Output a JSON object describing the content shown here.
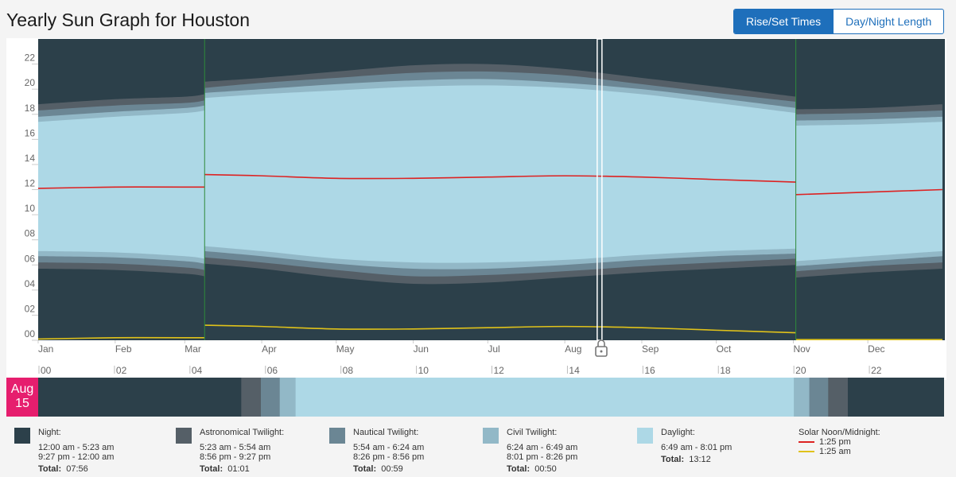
{
  "page": {
    "title": "Yearly Sun Graph for Houston"
  },
  "toggle": {
    "rise_set": "Rise/Set Times",
    "day_night": "Day/Night Length"
  },
  "colors": {
    "night": "#2c404a",
    "astronomical": "#555f67",
    "nautical": "#6b8694",
    "civil": "#92b8c7",
    "daylight": "#add8e6",
    "noon": "#dd2222",
    "midnight": "#e0c21a",
    "accent": "#1e6fbb",
    "badge": "#e61e6e"
  },
  "chart_data": {
    "type": "area",
    "title": "Yearly Sun Graph for Houston",
    "ylim": [
      0,
      24
    ],
    "y_ticks": [
      "00",
      "02",
      "04",
      "06",
      "08",
      "10",
      "12",
      "14",
      "16",
      "18",
      "20",
      "22"
    ],
    "months": [
      "Jan",
      "Feb",
      "Mar",
      "Apr",
      "May",
      "Jun",
      "Jul",
      "Aug",
      "Sep",
      "Oct",
      "Nov",
      "Dec"
    ],
    "dst_segments": [
      {
        "x": [
          "Jan 1",
          "Feb 1",
          "Mar 1",
          "Mar 9"
        ],
        "astro_dawn": [
          5.7,
          5.6,
          5.3,
          5.1
        ],
        "naut_dawn": [
          6.2,
          6.1,
          5.8,
          5.6
        ],
        "civil_dawn": [
          6.7,
          6.6,
          6.3,
          6.1
        ],
        "sunrise": [
          7.1,
          7.0,
          6.7,
          6.5
        ],
        "solar_noon": [
          12.1,
          12.2,
          12.2,
          12.2
        ],
        "sunset": [
          17.4,
          17.8,
          18.1,
          18.3
        ],
        "civil_dusk": [
          17.8,
          18.2,
          18.5,
          18.7
        ],
        "naut_dusk": [
          18.3,
          18.7,
          18.9,
          19.1
        ],
        "astro_dusk": [
          18.8,
          19.2,
          19.4,
          19.6
        ],
        "solar_midnight": [
          0.1,
          0.2,
          0.2,
          0.2
        ]
      },
      {
        "x": [
          "Mar 9",
          "Apr 1",
          "May 1",
          "Jun 1",
          "Jul 1",
          "Aug 1",
          "Sep 1",
          "Oct 1",
          "Nov 2"
        ],
        "astro_dawn": [
          6.1,
          5.7,
          5.0,
          4.5,
          4.6,
          5.0,
          5.4,
          5.7,
          6.0
        ],
        "naut_dawn": [
          6.6,
          6.2,
          5.6,
          5.1,
          5.2,
          5.5,
          5.9,
          6.2,
          6.5
        ],
        "civil_dawn": [
          7.1,
          6.7,
          6.1,
          5.7,
          5.7,
          6.0,
          6.4,
          6.7,
          6.9
        ],
        "sunrise": [
          7.5,
          7.1,
          6.5,
          6.2,
          6.2,
          6.4,
          6.8,
          7.1,
          7.3
        ],
        "solar_noon": [
          13.2,
          13.1,
          12.9,
          12.9,
          13.0,
          13.1,
          13.0,
          12.8,
          12.6
        ],
        "sunset": [
          19.3,
          19.6,
          19.9,
          20.2,
          20.3,
          20.1,
          19.6,
          18.9,
          18.1
        ],
        "civil_dusk": [
          19.7,
          20.0,
          20.4,
          20.7,
          20.8,
          20.5,
          20.0,
          19.3,
          18.5
        ],
        "naut_dusk": [
          20.1,
          20.5,
          20.9,
          21.3,
          21.4,
          21.1,
          20.4,
          19.7,
          19.0
        ],
        "astro_dusk": [
          20.6,
          20.9,
          21.4,
          21.9,
          22.0,
          21.6,
          20.9,
          20.2,
          19.4
        ],
        "solar_midnight": [
          1.2,
          1.1,
          0.9,
          0.9,
          1.0,
          1.1,
          1.0,
          0.8,
          0.6
        ]
      },
      {
        "x": [
          "Nov 2",
          "Dec 1",
          "Dec 31"
        ],
        "astro_dawn": [
          5.0,
          5.4,
          5.7
        ],
        "naut_dawn": [
          5.5,
          5.9,
          6.2
        ],
        "civil_dawn": [
          5.9,
          6.3,
          6.7
        ],
        "sunrise": [
          6.3,
          6.7,
          7.1
        ],
        "solar_noon": [
          11.6,
          11.8,
          12.0
        ],
        "sunset": [
          17.1,
          17.2,
          17.4
        ],
        "civil_dusk": [
          17.5,
          17.6,
          17.8
        ],
        "naut_dusk": [
          18.0,
          18.1,
          18.3
        ],
        "astro_dusk": [
          18.4,
          18.5,
          18.8
        ],
        "solar_midnight": [
          -0.4,
          -0.2,
          0.0
        ]
      }
    ],
    "selected_date_marker": "Aug 15",
    "day_bar": {
      "hour_ticks": [
        "00",
        "02",
        "04",
        "06",
        "08",
        "10",
        "12",
        "14",
        "16",
        "18",
        "20",
        "22"
      ],
      "segments": [
        {
          "phase": "night",
          "start": 0.0,
          "end": 5.38
        },
        {
          "phase": "astronomical",
          "start": 5.38,
          "end": 5.9
        },
        {
          "phase": "nautical",
          "start": 5.9,
          "end": 6.4
        },
        {
          "phase": "civil",
          "start": 6.4,
          "end": 6.82
        },
        {
          "phase": "daylight",
          "start": 6.82,
          "end": 20.02
        },
        {
          "phase": "civil",
          "start": 20.02,
          "end": 20.43
        },
        {
          "phase": "nautical",
          "start": 20.43,
          "end": 20.93
        },
        {
          "phase": "astronomical",
          "start": 20.93,
          "end": 21.45
        },
        {
          "phase": "night",
          "start": 21.45,
          "end": 24.0
        }
      ]
    }
  },
  "date_badge": {
    "month": "Aug",
    "day": "15"
  },
  "legend": {
    "night": {
      "title": "Night:",
      "lines": [
        "12:00 am - 5:23 am",
        "9:27 pm - 12:00 am"
      ],
      "total_label": "Total:",
      "total": "07:56"
    },
    "astronomical": {
      "title": "Astronomical Twilight:",
      "lines": [
        "5:23 am - 5:54 am",
        "8:56 pm - 9:27 pm"
      ],
      "total_label": "Total:",
      "total": "01:01"
    },
    "nautical": {
      "title": "Nautical Twilight:",
      "lines": [
        "5:54 am - 6:24 am",
        "8:26 pm - 8:56 pm"
      ],
      "total_label": "Total:",
      "total": "00:59"
    },
    "civil": {
      "title": "Civil Twilight:",
      "lines": [
        "6:24 am - 6:49 am",
        "8:01 pm - 8:26 pm"
      ],
      "total_label": "Total:",
      "total": "00:50"
    },
    "daylight": {
      "title": "Daylight:",
      "lines": [
        "6:49 am - 8:01 pm"
      ],
      "total_label": "Total:",
      "total": "13:12"
    },
    "solar": {
      "title": "Solar Noon/Midnight:",
      "noon": "1:25 pm",
      "midnight": "1:25 am"
    }
  }
}
